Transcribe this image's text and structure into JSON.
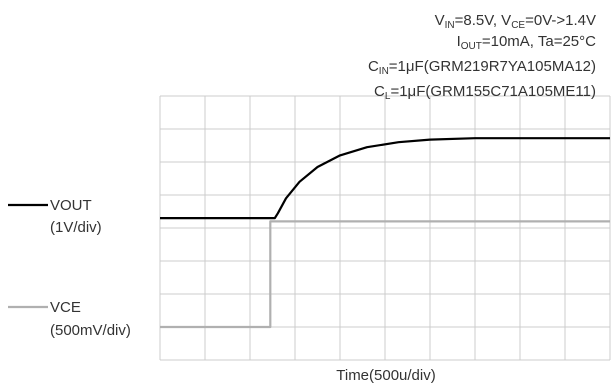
{
  "chart_data": {
    "type": "line",
    "xlabel": "Time(500u/div)",
    "annotations": [
      {
        "parts": [
          [
            "V",
            "n"
          ],
          [
            "IN",
            "s"
          ],
          [
            "=8.5V, V",
            "n"
          ],
          [
            "CE",
            "s"
          ],
          [
            "=0V->1.4V",
            "n"
          ]
        ]
      },
      {
        "parts": [
          [
            "I",
            "n"
          ],
          [
            "OUT",
            "s"
          ],
          [
            "=10mA, Ta=25°C",
            "n"
          ]
        ]
      },
      {
        "parts": [
          [
            "C",
            "n"
          ],
          [
            "IN",
            "s"
          ],
          [
            "=1μF(GRM219R7YA105MA12)",
            "n"
          ]
        ]
      },
      {
        "parts": [
          [
            "C",
            "n"
          ],
          [
            "L",
            "s"
          ],
          [
            "=1μF(GRM155C71A105ME11)",
            "n"
          ]
        ]
      }
    ],
    "grid": true,
    "x_divisions": 10,
    "y_divisions": 8,
    "x_unit": "div",
    "xlim": [
      0,
      10
    ],
    "series": [
      {
        "name": "VOUT",
        "scale": "(1V/div)",
        "color": "#000000",
        "points": [
          [
            0,
            4.3
          ],
          [
            2.55,
            4.3
          ],
          [
            2.62,
            4.45
          ],
          [
            2.8,
            4.9
          ],
          [
            3.1,
            5.4
          ],
          [
            3.5,
            5.85
          ],
          [
            4.0,
            6.2
          ],
          [
            4.6,
            6.45
          ],
          [
            5.3,
            6.6
          ],
          [
            6.0,
            6.68
          ],
          [
            7.0,
            6.72
          ],
          [
            10,
            6.72
          ]
        ]
      },
      {
        "name": "VCE",
        "scale": "(500mV/div)",
        "color": "#b0b0b0",
        "points": [
          [
            0,
            1.0
          ],
          [
            2.45,
            1.0
          ],
          [
            2.45,
            4.2
          ],
          [
            10,
            4.2
          ]
        ]
      }
    ]
  }
}
